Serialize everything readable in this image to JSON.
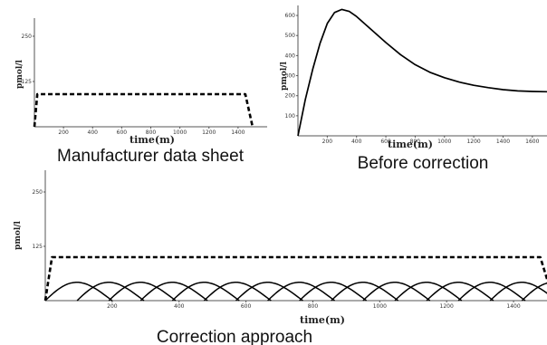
{
  "chart_data": [
    {
      "id": "manufacturer",
      "type": "line",
      "caption": "Manufacturer data sheet",
      "xlabel": "time(m)",
      "ylabel": "pmol/l",
      "xlim": [
        0,
        1600
      ],
      "ylim": [
        0,
        300
      ],
      "xticks": [
        200,
        400,
        600,
        800,
        1000,
        1200,
        1400
      ],
      "yticks": [
        125,
        250
      ],
      "grid": false,
      "series": [
        {
          "style": "dashed",
          "x": [
            0,
            20,
            1450,
            1500
          ],
          "y": [
            0,
            90,
            90,
            0
          ]
        }
      ]
    },
    {
      "id": "before",
      "type": "line",
      "caption": "Before correction",
      "xlabel": "time(m)",
      "ylabel": "pmol/l",
      "xlim": [
        0,
        1700
      ],
      "ylim": [
        0,
        650
      ],
      "xticks": [
        200,
        400,
        600,
        800,
        1000,
        1200,
        1400,
        1600
      ],
      "yticks": [
        100,
        200,
        300,
        400,
        500,
        600
      ],
      "grid": false,
      "series": [
        {
          "style": "solid",
          "x": [
            0,
            50,
            100,
            150,
            200,
            250,
            300,
            350,
            400,
            500,
            600,
            700,
            800,
            900,
            1000,
            1100,
            1200,
            1300,
            1400,
            1500,
            1600,
            1700
          ],
          "y": [
            0,
            180,
            330,
            460,
            560,
            615,
            630,
            620,
            595,
            530,
            465,
            405,
            355,
            317,
            290,
            268,
            252,
            240,
            230,
            224,
            221,
            220
          ]
        }
      ]
    },
    {
      "id": "correction",
      "type": "line",
      "caption": "Correction approach",
      "xlabel": "time(m)",
      "ylabel": "pmol/l",
      "xlim": [
        0,
        1500
      ],
      "ylim": [
        0,
        300
      ],
      "xticks": [
        200,
        400,
        600,
        800,
        1000,
        1200,
        1400
      ],
      "yticks": [
        125,
        250
      ],
      "grid": false,
      "target": {
        "style": "dashed",
        "x": [
          0,
          20,
          1480,
          1520
        ],
        "y": [
          0,
          100,
          100,
          0
        ]
      },
      "pulses": {
        "style": "solid",
        "starts": [
          0,
          95,
          190,
          285,
          380,
          475,
          570,
          665,
          760,
          855,
          950,
          1045,
          1140,
          1235,
          1330,
          1425
        ],
        "duration": 200,
        "peak": 48
      }
    }
  ]
}
